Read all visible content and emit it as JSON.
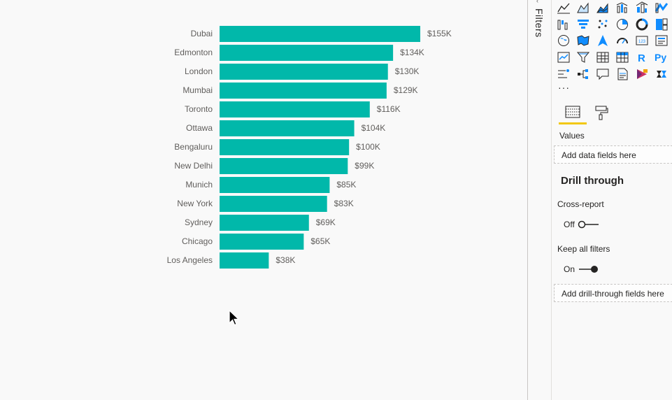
{
  "chart_data": {
    "type": "bar",
    "orientation": "horizontal",
    "categories": [
      "Dubai",
      "Edmonton",
      "London",
      "Mumbai",
      "Toronto",
      "Ottawa",
      "Bengaluru",
      "New Delhi",
      "Munich",
      "New York",
      "Sydney",
      "Chicago",
      "Los Angeles"
    ],
    "values": [
      155000,
      134000,
      130000,
      129000,
      116000,
      104000,
      100000,
      99000,
      85000,
      83000,
      69000,
      65000,
      38000
    ],
    "data_labels": [
      "$155K",
      "$134K",
      "$130K",
      "$129K",
      "$116K",
      "$104K",
      "$100K",
      "$99K",
      "$85K",
      "$83K",
      "$69K",
      "$65K",
      "$38K"
    ],
    "color": "#01b8aa",
    "xlim": [
      0,
      155000
    ],
    "grid": false,
    "legend": "none"
  },
  "filters_pane": {
    "label": "Filters",
    "collapse_glyph": "‹"
  },
  "viz_pane": {
    "visual_icons": [
      "line-chart-icon",
      "area-chart-icon",
      "stacked-area-chart-icon",
      "line-clustered-column-icon",
      "line-stacked-column-icon",
      "ribbon-chart-icon",
      "waterfall-chart-icon",
      "funnel-chart-icon",
      "scatter-chart-icon",
      "pie-chart-icon",
      "donut-chart-icon",
      "treemap-icon",
      "map-icon",
      "filled-map-icon",
      "azure-map-icon",
      "gauge-icon",
      "card-icon",
      "multi-row-card-icon",
      "kpi-icon",
      "slicer-icon",
      "table-icon",
      "matrix-icon",
      "r-visual-icon",
      "python-visual-icon",
      "key-influencers-icon",
      "decomposition-tree-icon",
      "qa-icon",
      "paginated-report-icon",
      "power-apps-icon",
      "power-automate-icon"
    ],
    "more_label": "···",
    "tabs": {
      "fields_icon": "fields-icon",
      "format_icon": "format-paint-roller-icon"
    },
    "values_label": "Values",
    "values_placeholder": "Add data fields here",
    "drill_through": {
      "title": "Drill through",
      "cross_report_label": "Cross-report",
      "cross_report_state": "Off",
      "cross_report_on": false,
      "keep_filters_label": "Keep all filters",
      "keep_filters_state": "On",
      "keep_filters_on": true,
      "placeholder": "Add drill-through fields here"
    }
  },
  "colors": {
    "bar": "#01b8aa",
    "accent_yellow": "#f2c811",
    "icon_blue": "#118dff",
    "icon_dark": "#252423",
    "label_gray": "#605e5c"
  }
}
